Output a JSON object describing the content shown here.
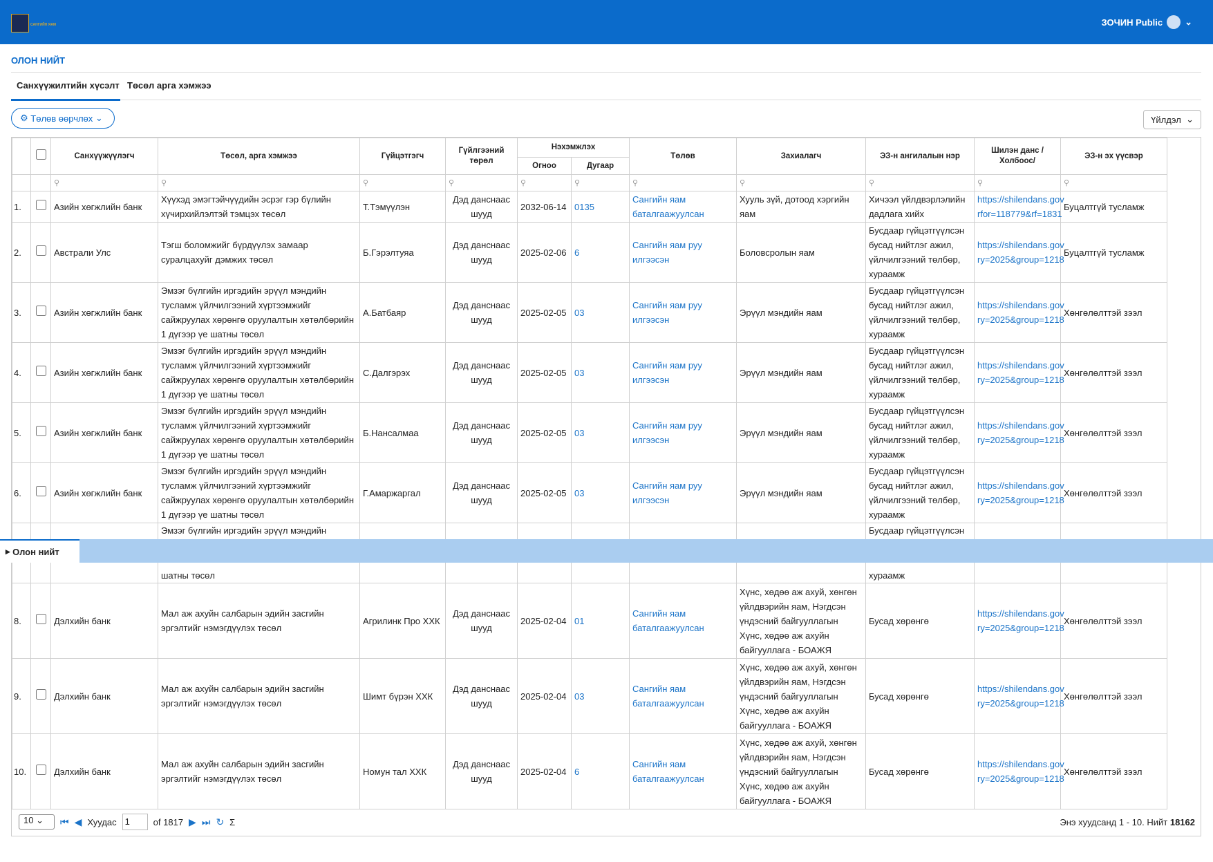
{
  "header": {
    "logo_text": "САНГИЙН ЯАМ",
    "user": "ЗОЧИН Public"
  },
  "page_title": "ОЛОН НИЙТ",
  "tabs": [
    "Санхүүжилтийн хүсэлт",
    "Төсөл арга хэмжээ"
  ],
  "buttons": {
    "status_change": "Төлөв өөрчлөх",
    "actions": "Үйлдэл"
  },
  "table": {
    "group_header": "Нэхэмжлэх",
    "columns": [
      "Санхүүжүүлэгч",
      "Төсөл, арга хэмжээ",
      "Гүйцэтгэгч",
      "Гүйлгээний төрөл",
      "Огноо",
      "Дугаар",
      "Төлөв",
      "Захиалагч",
      "ЭЗ-н ангилалын нэр",
      "Шилэн данс / Холбоос/",
      "ЭЗ-н эх үүсвэр"
    ],
    "rows": [
      [
        "1.",
        "Азийн хөгжлийн банк",
        "Хүүхэд эмэгтэйчүүдийн эсрэг гэр бүлийн хүчирхийлэлтэй тэмцэх төсөл",
        "Т.Тэмүүлэн",
        "Дэд данснаас шууд",
        "2032-06-14",
        "0135",
        "Сангийн яам баталгаажуулсан",
        "Хууль зүй, дотоод хэргийн яам",
        "Хичээл үйлдвэрлэлийн дадлага хийх",
        "https://shilendans.gov rfor=118779&rf=1831",
        "Буцалтгүй тусламж"
      ],
      [
        "2.",
        "Австрали Улс",
        "Тэгш боломжийг бүрдүүлэх замаар суралцахуйг дэмжих төсөл",
        "Б.Гэрэлтуяа",
        "Дэд данснаас шууд",
        "2025-02-06",
        "6",
        "Сангийн яам руу илгээсэн",
        "Боловсролын яам",
        "Бусдаар гүйцэтгүүлсэн бусад нийтлэг ажил, үйлчилгээний төлбөр, хураамж",
        "https://shilendans.gov ry=2025&group=1218",
        "Буцалтгүй тусламж"
      ],
      [
        "3.",
        "Азийн хөгжлийн банк",
        "Эмзэг бүлгийн иргэдийн эрүүл мэндийн тусламж үйлчилгээний хүртээмжийг сайжруулах хөрөнгө оруулалтын хөтөлбөрийн 1 дүгээр үе шатны төсөл",
        "А.Батбаяр",
        "Дэд данснаас шууд",
        "2025-02-05",
        "03",
        "Сангийн яам руу илгээсэн",
        "Эрүүл мэндийн яам",
        "Бусдаар гүйцэтгүүлсэн бусад нийтлэг ажил, үйлчилгээний төлбөр, хураамж",
        "https://shilendans.gov ry=2025&group=1218",
        "Хөнгөлөлттэй зээл"
      ],
      [
        "4.",
        "Азийн хөгжлийн банк",
        "Эмзэг бүлгийн иргэдийн эрүүл мэндийн тусламж үйлчилгээний хүртээмжийг сайжруулах хөрөнгө оруулалтын хөтөлбөрийн 1 дүгээр үе шатны төсөл",
        "С.Далгэрэх",
        "Дэд данснаас шууд",
        "2025-02-05",
        "03",
        "Сангийн яам руу илгээсэн",
        "Эрүүл мэндийн яам",
        "Бусдаар гүйцэтгүүлсэн бусад нийтлэг ажил, үйлчилгээний төлбөр, хураамж",
        "https://shilendans.gov ry=2025&group=1218",
        "Хөнгөлөлттэй зээл"
      ],
      [
        "5.",
        "Азийн хөгжлийн банк",
        "Эмзэг бүлгийн иргэдийн эрүүл мэндийн тусламж үйлчилгээний хүртээмжийг сайжруулах хөрөнгө оруулалтын хөтөлбөрийн 1 дүгээр үе шатны төсөл",
        "Б.Нансалмаа",
        "Дэд данснаас шууд",
        "2025-02-05",
        "03",
        "Сангийн яам руу илгээсэн",
        "Эрүүл мэндийн яам",
        "Бусдаар гүйцэтгүүлсэн бусад нийтлэг ажил, үйлчилгээний төлбөр, хураамж",
        "https://shilendans.gov ry=2025&group=1218",
        "Хөнгөлөлттэй зээл"
      ],
      [
        "6.",
        "Азийн хөгжлийн банк",
        "Эмзэг бүлгийн иргэдийн эрүүл мэндийн тусламж үйлчилгээний хүртээмжийг сайжруулах хөрөнгө оруулалтын хөтөлбөрийн 1 дүгээр үе шатны төсөл",
        "Г.Амаржаргал",
        "Дэд данснаас шууд",
        "2025-02-05",
        "03",
        "Сангийн яам руу илгээсэн",
        "Эрүүл мэндийн яам",
        "Бусдаар гүйцэтгүүлсэн бусад нийтлэг ажил, үйлчилгээний төлбөр, хураамж",
        "https://shilendans.gov ry=2025&group=1218",
        "Хөнгөлөлттэй зээл"
      ],
      [
        "8.",
        "Дэлхийн банк",
        "Мал аж ахуйн салбарын эдийн засгийн эргэлтийг нэмэгдүүлэх төсөл",
        "Агрилинк Про ХХК",
        "Дэд данснаас шууд",
        "2025-02-04",
        "01",
        "Сангийн яам баталгаажуулсан",
        "Хүнс, хөдөө аж ахуй, хөнгөн үйлдвэрийн яам, Нэгдсэн үндэсний байгууллагын Хүнс, хөдөө аж ахуйн байгууллага - БОАЖЯ",
        "Бусад хөрөнгө",
        "https://shilendans.gov ry=2025&group=1218",
        "Хөнгөлөлттэй зээл"
      ],
      [
        "9.",
        "Дэлхийн банк",
        "Мал аж ахуйн салбарын эдийн засгийн эргэлтийг нэмэгдүүлэх төсөл",
        "Шимт бүрэн ХХК",
        "Дэд данснаас шууд",
        "2025-02-04",
        "03",
        "Сангийн яам баталгаажуулсан",
        "Хүнс, хөдөө аж ахуй, хөнгөн үйлдвэрийн яам, Нэгдсэн үндэсний байгууллагын Хүнс, хөдөө аж ахуйн байгууллага - БОАЖЯ",
        "Бусад хөрөнгө",
        "https://shilendans.gov ry=2025&group=1218",
        "Хөнгөлөлттэй зээл"
      ],
      [
        "10.",
        "Дэлхийн банк",
        "Мал аж ахуйн салбарын эдийн засгийн эргэлтийг нэмэгдүүлэх төсөл",
        "Номун тал ХХК",
        "Дэд данснаас шууд",
        "2025-02-04",
        "6",
        "Сангийн яам баталгаажуулсан",
        "Хүнс, хөдөө аж ахуй, хөнгөн үйлдвэрийн яам, Нэгдсэн үндэсний байгууллагын Хүнс, хөдөө аж ахуйн байгууллага - БОАЖЯ",
        "Бусад хөрөнгө",
        "https://shilendans.gov ry=2025&group=1218",
        "Хөнгөлөлттэй зээл"
      ]
    ],
    "partial_row": {
      "project_top": "Эмзэг бүлгийн иргэдийн эрүүл мэндийн",
      "project_bottom": "шатны төсөл",
      "category_top": "Бусдаар гүйцэтгүүлсэн",
      "category_bottom": "хураамж"
    }
  },
  "overlay_tab": "Олон нийт",
  "pager": {
    "page_size": "10",
    "page_label": "Хуудас",
    "page": "1",
    "of": "of 1817",
    "summary": "Энэ хуудсанд 1 - 10. Нийт",
    "total": "18162"
  }
}
